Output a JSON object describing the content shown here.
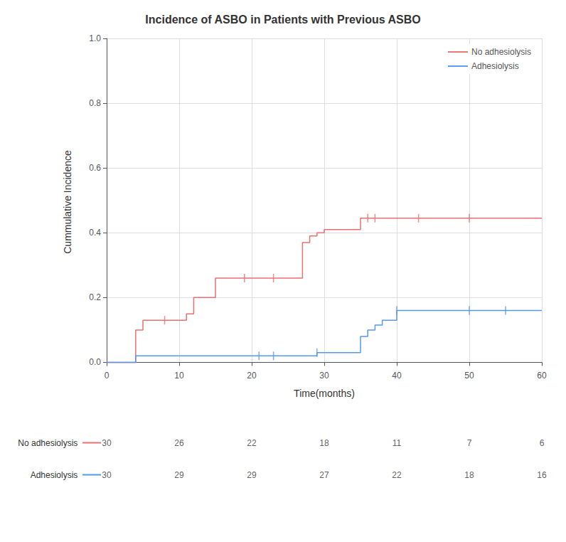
{
  "chart_data": {
    "type": "line",
    "title": "Incidence of ASBO in Patients with Previous ASBO",
    "xlabel": "Time(months)",
    "ylabel": "Cummulative Incidence",
    "xlim": [
      0,
      60
    ],
    "ylim": [
      -0.01,
      1.0
    ],
    "xticks": [
      0,
      10,
      20,
      30,
      40,
      50,
      60
    ],
    "yticks": [
      {
        "value": 0.0,
        "label": "0.0"
      },
      0.2,
      0.4,
      0.6,
      0.8,
      {
        "value": 1.0,
        "label": "1.0"
      }
    ],
    "grid": true,
    "legend": "upper right",
    "line_style": "step",
    "series": [
      {
        "name": "No adhesiolysis",
        "color": "#e87070",
        "x": [
          0,
          3,
          4,
          5,
          6,
          10,
          11,
          12,
          14,
          15,
          19,
          26,
          27,
          28,
          29,
          30,
          34,
          35,
          36,
          60
        ],
        "values": [
          0.0,
          0.0,
          0.1,
          0.13,
          0.13,
          0.13,
          0.15,
          0.2,
          0.2,
          0.26,
          0.26,
          0.26,
          0.37,
          0.39,
          0.4,
          0.41,
          0.41,
          0.445,
          0.445,
          0.445
        ],
        "censors": {
          "marker": "|",
          "x": [
            8,
            19,
            23,
            36,
            37,
            43,
            50
          ],
          "values": [
            0.13,
            0.26,
            0.26,
            0.445,
            0.445,
            0.445,
            0.445
          ]
        }
      },
      {
        "name": "Adhesiolysis",
        "color": "#5599ee",
        "x": [
          0,
          3,
          4,
          21,
          28,
          29,
          34,
          35,
          36,
          37,
          38,
          39,
          40,
          55,
          60
        ],
        "values": [
          0.0,
          0.0,
          0.02,
          0.02,
          0.02,
          0.03,
          0.03,
          0.08,
          0.1,
          0.115,
          0.13,
          0.13,
          0.16,
          0.16,
          0.16
        ],
        "censors": {
          "marker": "|",
          "x": [
            21,
            23,
            29,
            40,
            50,
            55
          ],
          "values": [
            0.02,
            0.02,
            0.03,
            0.16,
            0.16,
            0.16
          ]
        }
      }
    ],
    "risk_table": {
      "x": [
        0,
        10,
        20,
        30,
        40,
        50,
        60
      ],
      "rows": [
        {
          "label": "No adhesiolysis",
          "color": "#e87070",
          "values": [
            30,
            26,
            22,
            18,
            11,
            7,
            6
          ]
        },
        {
          "label": "Adhesiolysis",
          "color": "#5599ee",
          "values": [
            30,
            29,
            29,
            27,
            22,
            18,
            16
          ]
        }
      ]
    }
  }
}
